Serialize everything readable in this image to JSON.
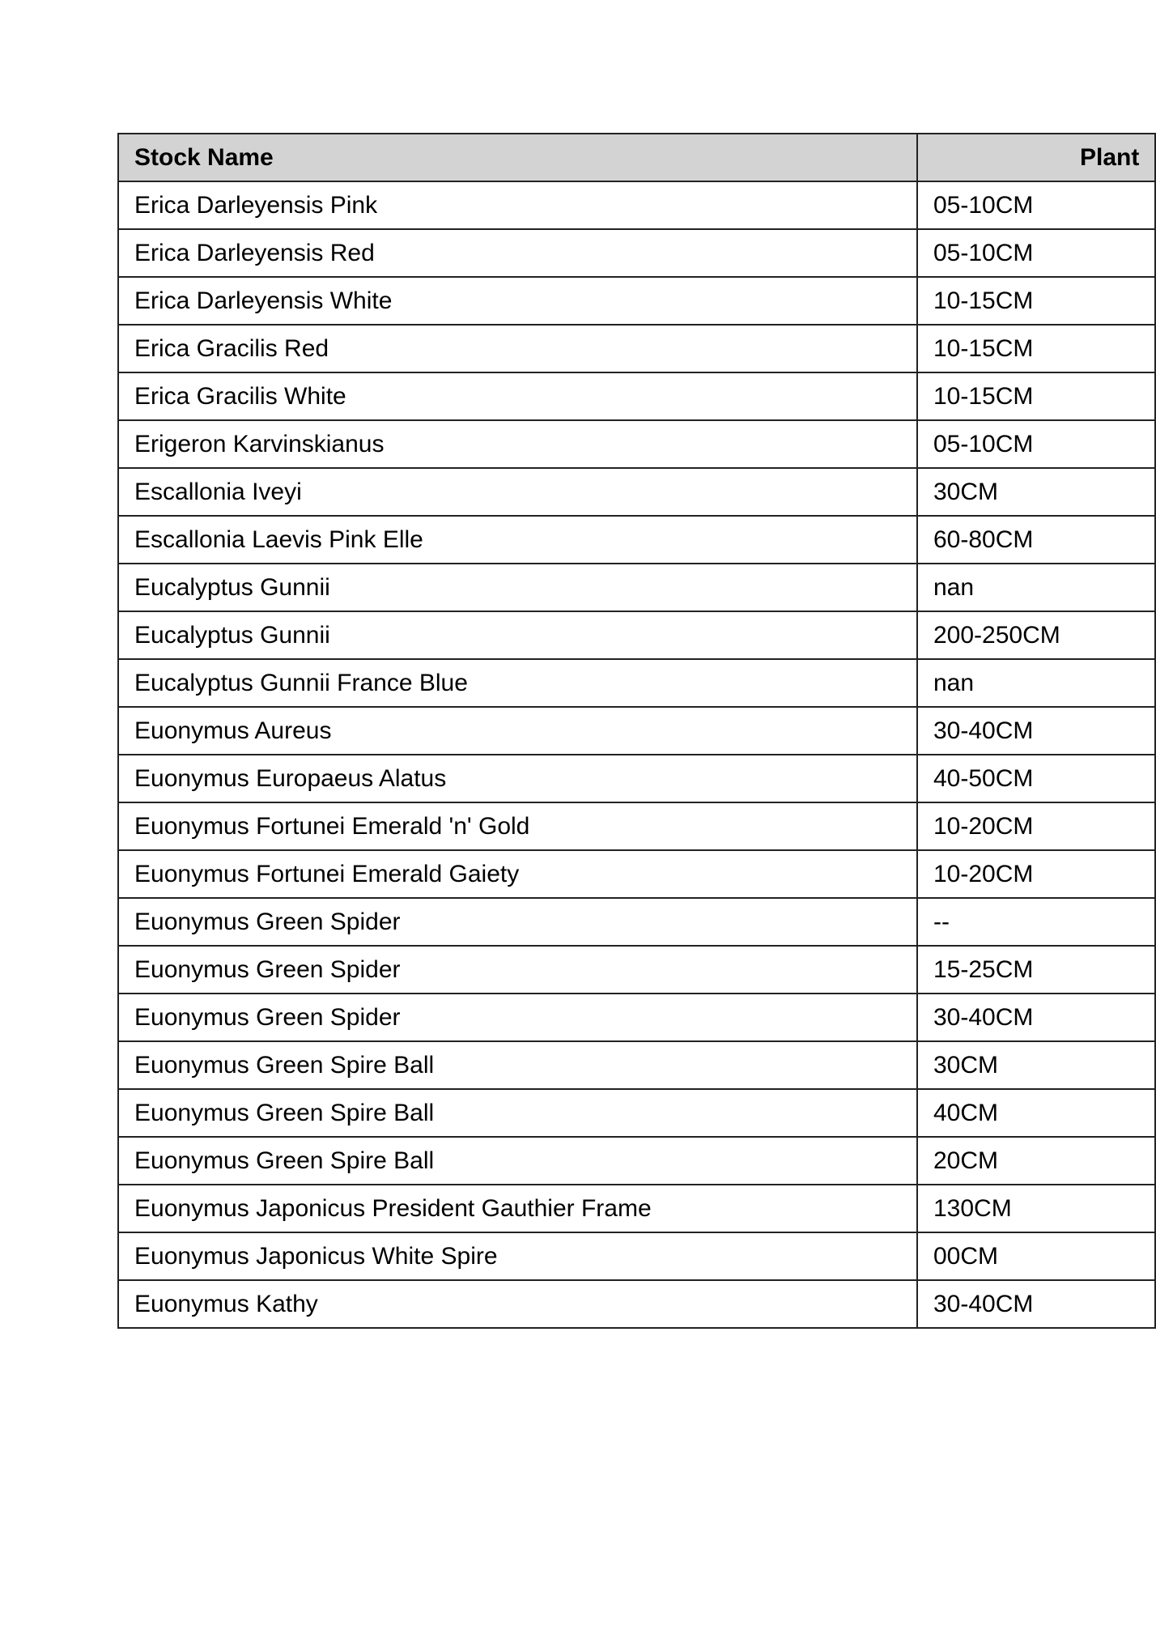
{
  "table": {
    "headers": [
      "Stock Name",
      "Plant"
    ],
    "rows": [
      [
        "Erica Darleyensis Pink",
        "05-10CM"
      ],
      [
        "Erica Darleyensis Red",
        "05-10CM"
      ],
      [
        "Erica Darleyensis White",
        "10-15CM"
      ],
      [
        "Erica Gracilis Red",
        "10-15CM"
      ],
      [
        "Erica Gracilis White",
        "10-15CM"
      ],
      [
        "Erigeron Karvinskianus",
        "05-10CM"
      ],
      [
        "Escallonia Iveyi",
        "30CM"
      ],
      [
        "Escallonia Laevis Pink Elle",
        "60-80CM"
      ],
      [
        "Eucalyptus Gunnii",
        "nan"
      ],
      [
        "Eucalyptus Gunnii",
        "200-250CM"
      ],
      [
        "Eucalyptus Gunnii France Blue",
        "nan"
      ],
      [
        "Euonymus Aureus",
        "30-40CM"
      ],
      [
        "Euonymus Europaeus Alatus",
        "40-50CM"
      ],
      [
        "Euonymus Fortunei Emerald 'n' Gold",
        "10-20CM"
      ],
      [
        "Euonymus Fortunei Emerald Gaiety",
        "10-20CM"
      ],
      [
        "Euonymus Green Spider",
        "--"
      ],
      [
        "Euonymus Green Spider",
        "15-25CM"
      ],
      [
        "Euonymus Green Spider",
        "30-40CM"
      ],
      [
        "Euonymus Green Spire Ball",
        "30CM"
      ],
      [
        "Euonymus Green Spire Ball",
        "40CM"
      ],
      [
        "Euonymus Green Spire Ball",
        "20CM"
      ],
      [
        "Euonymus Japonicus President Gauthier Frame",
        "130CM"
      ],
      [
        "Euonymus Japonicus White Spire",
        "00CM"
      ],
      [
        "Euonymus Kathy",
        "30-40CM"
      ]
    ]
  }
}
